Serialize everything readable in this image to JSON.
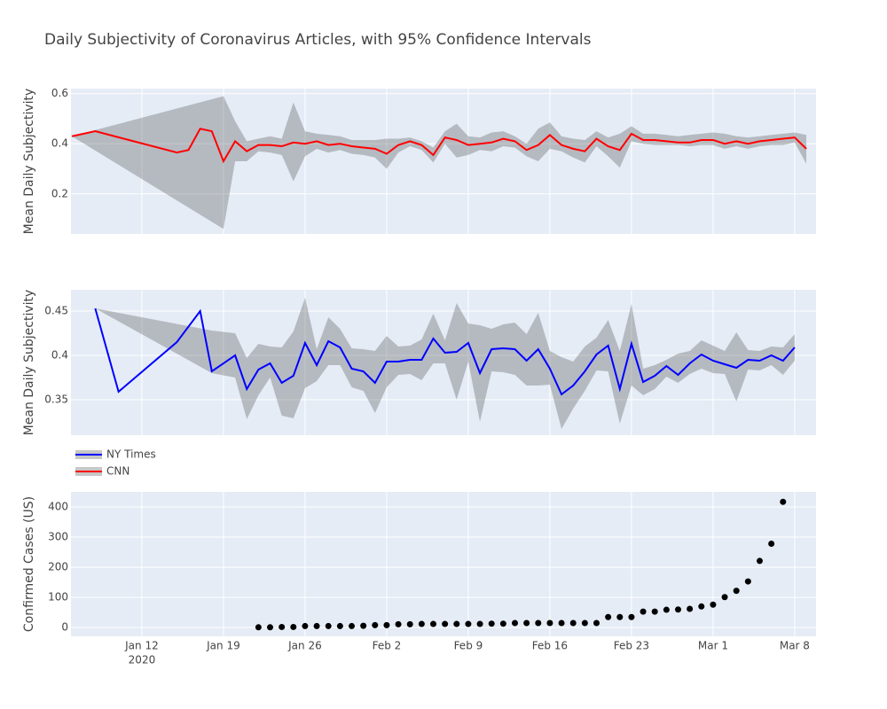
{
  "title": "Daily Subjectivity of Coronavirus Articles, with 95% Confidence Intervals",
  "chart_data": [
    {
      "type": "line",
      "ylabel": "Mean Daily Subjectivity",
      "ylim": [
        0.04,
        0.62
      ],
      "yticks": [
        0.2,
        0.4,
        0.6
      ],
      "grid": true,
      "connect_gaps": true,
      "x": [
        "2020-01-06",
        "2020-01-08",
        "2020-01-15",
        "2020-01-16",
        "2020-01-17",
        "2020-01-18",
        "2020-01-19",
        "2020-01-20",
        "2020-01-21",
        "2020-01-22",
        "2020-01-23",
        "2020-01-24",
        "2020-01-25",
        "2020-01-26",
        "2020-01-27",
        "2020-01-28",
        "2020-01-29",
        "2020-01-30",
        "2020-01-31",
        "2020-02-01",
        "2020-02-02",
        "2020-02-03",
        "2020-02-04",
        "2020-02-05",
        "2020-02-06",
        "2020-02-07",
        "2020-02-08",
        "2020-02-09",
        "2020-02-10",
        "2020-02-11",
        "2020-02-12",
        "2020-02-13",
        "2020-02-14",
        "2020-02-15",
        "2020-02-16",
        "2020-02-17",
        "2020-02-18",
        "2020-02-19",
        "2020-02-20",
        "2020-02-21",
        "2020-02-22",
        "2020-02-23",
        "2020-02-24",
        "2020-02-25",
        "2020-02-26",
        "2020-02-27",
        "2020-02-28",
        "2020-02-29",
        "2020-03-01",
        "2020-03-02",
        "2020-03-03",
        "2020-03-04",
        "2020-03-05",
        "2020-03-06",
        "2020-03-07",
        "2020-03-08",
        "2020-03-09"
      ],
      "series": [
        {
          "name": "CNN",
          "color": "#ff0000",
          "band_color": "rgba(68,68,68,0.3)",
          "values": [
            0.43,
            0.45,
            0.365,
            0.375,
            0.46,
            0.45,
            0.33,
            0.41,
            0.37,
            0.395,
            0.395,
            0.39,
            0.405,
            0.4,
            0.41,
            0.395,
            0.4,
            0.39,
            0.385,
            0.38,
            0.36,
            0.395,
            0.41,
            0.395,
            0.355,
            0.425,
            0.415,
            0.395,
            0.4,
            0.405,
            0.42,
            0.41,
            0.375,
            0.395,
            0.435,
            0.395,
            0.38,
            0.37,
            0.42,
            0.39,
            0.375,
            0.44,
            0.415,
            0.415,
            0.41,
            0.405,
            0.405,
            0.415,
            0.415,
            0.4,
            0.41,
            0.4,
            0.41,
            0.415,
            0.42,
            0.425,
            0.38
          ],
          "upper": [
            0.43,
            null,
            null,
            null,
            null,
            null,
            0.59,
            0.49,
            0.41,
            0.42,
            0.43,
            0.42,
            0.565,
            0.45,
            0.44,
            0.435,
            0.43,
            0.415,
            0.415,
            0.415,
            0.42,
            0.42,
            0.425,
            0.41,
            0.385,
            0.45,
            0.48,
            0.43,
            0.425,
            0.445,
            0.45,
            0.43,
            0.4,
            0.46,
            0.485,
            0.43,
            0.42,
            0.415,
            0.45,
            0.425,
            0.44,
            0.47,
            0.44,
            0.44,
            0.435,
            0.43,
            0.435,
            0.44,
            0.445,
            0.44,
            0.43,
            0.425,
            0.43,
            0.435,
            0.44,
            0.445,
            0.435
          ],
          "lower": [
            0.43,
            null,
            null,
            null,
            null,
            null,
            0.06,
            0.33,
            0.33,
            0.37,
            0.365,
            0.355,
            0.25,
            0.35,
            0.38,
            0.365,
            0.375,
            0.36,
            0.355,
            0.345,
            0.3,
            0.365,
            0.39,
            0.375,
            0.325,
            0.4,
            0.345,
            0.355,
            0.375,
            0.37,
            0.39,
            0.385,
            0.35,
            0.33,
            0.38,
            0.37,
            0.345,
            0.325,
            0.39,
            0.35,
            0.305,
            0.41,
            0.4,
            0.395,
            0.395,
            0.395,
            0.39,
            0.395,
            0.395,
            0.38,
            0.39,
            0.38,
            0.39,
            0.395,
            0.395,
            0.405,
            0.32
          ]
        }
      ]
    },
    {
      "type": "line",
      "ylabel": "Mean Daily Subjectivity",
      "ylim": [
        0.31,
        0.474
      ],
      "yticks": [
        0.35,
        0.4,
        0.45
      ],
      "grid": true,
      "connect_gaps": true,
      "x": [
        "2020-01-08",
        "2020-01-10",
        "2020-01-15",
        "2020-01-17",
        "2020-01-18",
        "2020-01-20",
        "2020-01-21",
        "2020-01-22",
        "2020-01-23",
        "2020-01-24",
        "2020-01-25",
        "2020-01-26",
        "2020-01-27",
        "2020-01-28",
        "2020-01-29",
        "2020-01-30",
        "2020-01-31",
        "2020-02-01",
        "2020-02-02",
        "2020-02-03",
        "2020-02-04",
        "2020-02-05",
        "2020-02-06",
        "2020-02-07",
        "2020-02-08",
        "2020-02-09",
        "2020-02-10",
        "2020-02-11",
        "2020-02-12",
        "2020-02-13",
        "2020-02-14",
        "2020-02-15",
        "2020-02-16",
        "2020-02-17",
        "2020-02-18",
        "2020-02-19",
        "2020-02-20",
        "2020-02-21",
        "2020-02-22",
        "2020-02-23",
        "2020-02-24",
        "2020-02-25",
        "2020-02-26",
        "2020-02-27",
        "2020-02-28",
        "2020-02-29",
        "2020-03-01",
        "2020-03-02",
        "2020-03-03",
        "2020-03-04",
        "2020-03-05",
        "2020-03-06",
        "2020-03-07",
        "2020-03-08"
      ],
      "series": [
        {
          "name": "NY Times",
          "color": "#0000ff",
          "band_color": "rgba(68,68,68,0.3)",
          "values": [
            0.453,
            0.359,
            0.415,
            0.45,
            0.382,
            0.4,
            0.362,
            0.384,
            0.391,
            0.369,
            0.377,
            0.414,
            0.389,
            0.416,
            0.409,
            0.385,
            0.382,
            0.369,
            0.393,
            0.393,
            0.395,
            0.395,
            0.419,
            0.403,
            0.404,
            0.414,
            0.38,
            0.407,
            0.408,
            0.407,
            0.394,
            0.407,
            0.385,
            0.356,
            0.366,
            0.382,
            0.401,
            0.411,
            0.362,
            0.413,
            0.37,
            0.377,
            0.388,
            0.378,
            0.391,
            0.401,
            0.394,
            0.39,
            0.386,
            0.395,
            0.394,
            0.4,
            0.394,
            0.409
          ],
          "upper": [
            0.453,
            null,
            null,
            null,
            0.428,
            0.425,
            0.397,
            0.413,
            0.41,
            0.409,
            0.427,
            0.465,
            0.407,
            0.443,
            0.43,
            0.408,
            0.407,
            0.405,
            0.422,
            0.41,
            0.411,
            0.418,
            0.447,
            0.417,
            0.459,
            0.436,
            0.434,
            0.43,
            0.435,
            0.437,
            0.424,
            0.448,
            0.405,
            0.398,
            0.393,
            0.41,
            0.42,
            0.44,
            0.405,
            0.458,
            0.385,
            0.389,
            0.395,
            0.402,
            0.405,
            0.417,
            0.411,
            0.405,
            0.426,
            0.406,
            0.405,
            0.41,
            0.409,
            0.424
          ],
          "lower": [
            0.453,
            null,
            null,
            null,
            0.38,
            0.375,
            0.328,
            0.355,
            0.375,
            0.332,
            0.329,
            0.363,
            0.371,
            0.389,
            0.389,
            0.364,
            0.36,
            0.335,
            0.364,
            0.378,
            0.379,
            0.372,
            0.391,
            0.391,
            0.35,
            0.393,
            0.325,
            0.382,
            0.381,
            0.378,
            0.366,
            0.366,
            0.367,
            0.317,
            0.34,
            0.36,
            0.383,
            0.382,
            0.323,
            0.366,
            0.355,
            0.362,
            0.376,
            0.369,
            0.379,
            0.385,
            0.38,
            0.379,
            0.348,
            0.384,
            0.383,
            0.389,
            0.378,
            0.394
          ]
        }
      ]
    },
    {
      "type": "scatter",
      "ylabel": "Confirmed Cases (US)",
      "ylim": [
        -29,
        450
      ],
      "yticks": [
        0,
        100,
        200,
        300,
        400
      ],
      "grid": true,
      "color": "#000000",
      "xlim": [
        "2020-01-05T22:00",
        "2020-03-09T20:00"
      ],
      "xticks": [
        {
          "value": "2020-01-12",
          "label": "Jan 12"
        },
        {
          "value": "2020-01-19",
          "label": "Jan 19"
        },
        {
          "value": "2020-01-26",
          "label": "Jan 26"
        },
        {
          "value": "2020-02-02",
          "label": "Feb 2"
        },
        {
          "value": "2020-02-09",
          "label": "Feb 9"
        },
        {
          "value": "2020-02-16",
          "label": "Feb 16"
        },
        {
          "value": "2020-02-23",
          "label": "Feb 23"
        },
        {
          "value": "2020-03-01",
          "label": "Mar 1"
        },
        {
          "value": "2020-03-08",
          "label": "Mar 8"
        }
      ],
      "xtick_year": "2020",
      "x": [
        "2020-01-22",
        "2020-01-23",
        "2020-01-24",
        "2020-01-25",
        "2020-01-26",
        "2020-01-27",
        "2020-01-28",
        "2020-01-29",
        "2020-01-30",
        "2020-01-31",
        "2020-02-01",
        "2020-02-02",
        "2020-02-03",
        "2020-02-04",
        "2020-02-05",
        "2020-02-06",
        "2020-02-07",
        "2020-02-08",
        "2020-02-09",
        "2020-02-10",
        "2020-02-11",
        "2020-02-12",
        "2020-02-13",
        "2020-02-14",
        "2020-02-15",
        "2020-02-16",
        "2020-02-17",
        "2020-02-18",
        "2020-02-19",
        "2020-02-20",
        "2020-02-21",
        "2020-02-22",
        "2020-02-23",
        "2020-02-24",
        "2020-02-25",
        "2020-02-26",
        "2020-02-27",
        "2020-02-28",
        "2020-02-29",
        "2020-03-01",
        "2020-03-02",
        "2020-03-03",
        "2020-03-04",
        "2020-03-05",
        "2020-03-06",
        "2020-03-07"
      ],
      "values": [
        1,
        1,
        2,
        2,
        5,
        5,
        5,
        5,
        5,
        6,
        8,
        8,
        11,
        11,
        12,
        12,
        12,
        12,
        12,
        12,
        13,
        13,
        15,
        15,
        15,
        15,
        15,
        15,
        15,
        15,
        35,
        35,
        35,
        53,
        53,
        59,
        60,
        62,
        70,
        76,
        101,
        122,
        153,
        221,
        278,
        417
      ]
    }
  ]
}
